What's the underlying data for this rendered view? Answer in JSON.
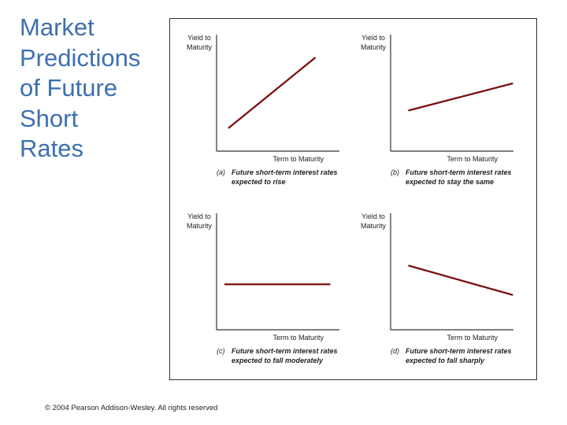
{
  "slide": {
    "title_lines": [
      "Market",
      "Predictions",
      "of Future",
      "Short",
      "Rates"
    ],
    "footer": "© 2004 Pearson Addison-Wesley. All rights reserved"
  },
  "colors": {
    "title": "#3d6fb0",
    "curve": "#7a1010",
    "axis": "#333333"
  },
  "chart_data": [
    {
      "type": "line",
      "panel": "a",
      "ylabel": "Yield to Maturity",
      "xlabel": "Term to Maturity",
      "caption_letter": "(a)",
      "caption_lines": [
        "Future short-term interest rates",
        "expected to rise"
      ],
      "x": [
        0.1,
        0.8
      ],
      "y": [
        0.2,
        0.8
      ],
      "xlim": [
        0,
        1
      ],
      "ylim": [
        0,
        1
      ]
    },
    {
      "type": "line",
      "panel": "b",
      "ylabel": "Yield to Maturity",
      "xlabel": "Term to Maturity",
      "caption_letter": "(b)",
      "caption_lines": [
        "Future short-term interest rates",
        "expected to stay the same"
      ],
      "x": [
        0.15,
        0.99
      ],
      "y": [
        0.35,
        0.58
      ],
      "xlim": [
        0,
        1
      ],
      "ylim": [
        0,
        1
      ]
    },
    {
      "type": "line",
      "panel": "c",
      "ylabel": "Yield to Maturity",
      "xlabel": "Term to Maturity",
      "caption_letter": "(c)",
      "caption_lines": [
        "Future short-term interest rates",
        "expected to fall moderately"
      ],
      "x": [
        0.07,
        0.92
      ],
      "y": [
        0.39,
        0.39
      ],
      "xlim": [
        0,
        1
      ],
      "ylim": [
        0,
        1
      ]
    },
    {
      "type": "line",
      "panel": "d",
      "ylabel": "Yield to Maturity",
      "xlabel": "Term to Maturity",
      "caption_letter": "(d)",
      "caption_lines": [
        "Future short-term interest rates",
        "expected to fall sharply"
      ],
      "x": [
        0.15,
        0.99
      ],
      "y": [
        0.55,
        0.3
      ],
      "xlim": [
        0,
        1
      ],
      "ylim": [
        0,
        1
      ]
    }
  ]
}
